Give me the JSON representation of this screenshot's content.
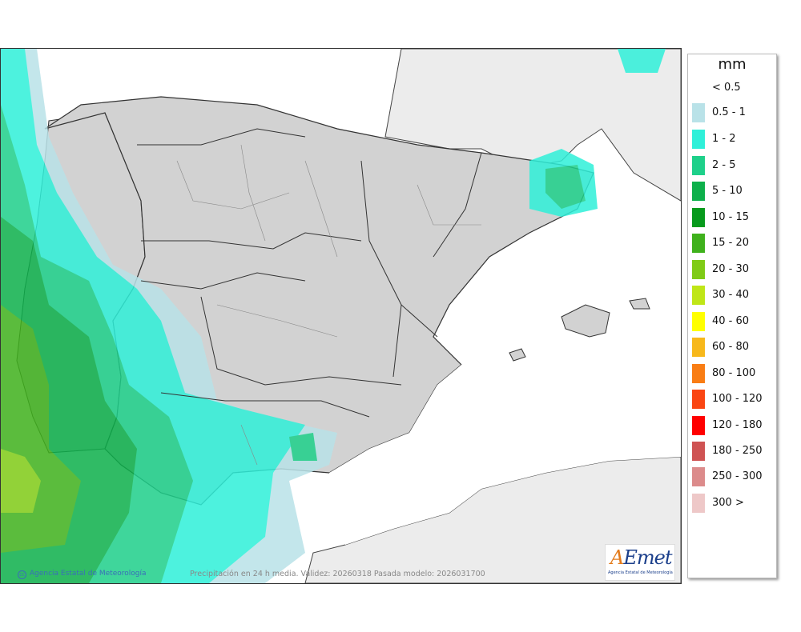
{
  "legend": {
    "unit": "mm",
    "items": [
      {
        "label": "< 0.5",
        "color": "#ffffff"
      },
      {
        "label": "0.5 - 1",
        "color": "#b9e2e8"
      },
      {
        "label": "1 - 2",
        "color": "#2ff0d9"
      },
      {
        "label": "2 - 5",
        "color": "#1ed08a"
      },
      {
        "label": "5 - 10",
        "color": "#0db04b"
      },
      {
        "label": "10 - 15",
        "color": "#079a1c"
      },
      {
        "label": "15 - 20",
        "color": "#3fb11c"
      },
      {
        "label": "20 - 30",
        "color": "#7fcb16"
      },
      {
        "label": "30 - 40",
        "color": "#bfe617"
      },
      {
        "label": "40 - 60",
        "color": "#ffff00"
      },
      {
        "label": "60 - 80",
        "color": "#f7b81b"
      },
      {
        "label": "80 - 100",
        "color": "#f97d14"
      },
      {
        "label": "100 - 120",
        "color": "#fa4613"
      },
      {
        "label": "120 - 180",
        "color": "#ff0000"
      },
      {
        "label": "180 - 250",
        "color": "#cf5353"
      },
      {
        "label": "250 - 300",
        "color": "#dc8b8b"
      },
      {
        "label": "300 >",
        "color": "#eec8c8"
      }
    ]
  },
  "footer": {
    "credit": "Agencia Estatal de Meteorología",
    "caption": "Precipitación en 24 h media. Validez: 20260318 Pasada modelo: 2026031700"
  },
  "logo": {
    "word_a": "A",
    "word_rest": "Emet",
    "subtitle": "Agencia Estatal de Meteorología"
  },
  "colors": {
    "land": "#d2d2d2",
    "foreign_land": "#ececec",
    "sea": "#ffffff"
  }
}
